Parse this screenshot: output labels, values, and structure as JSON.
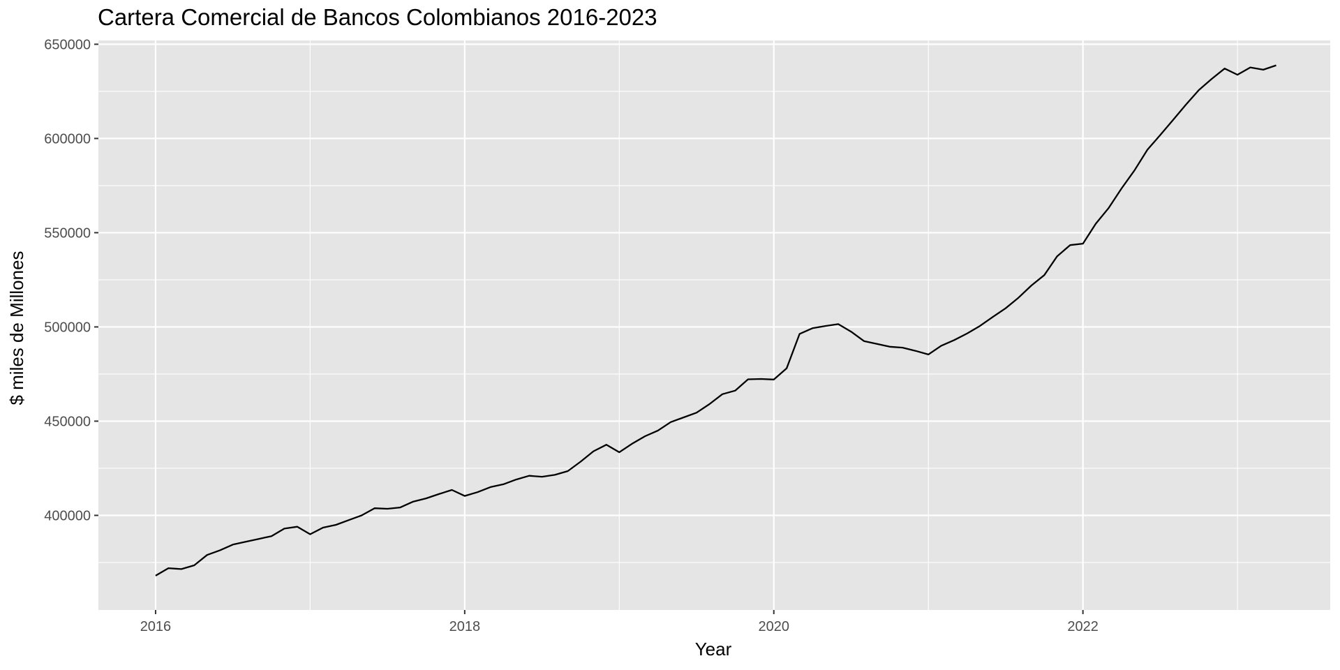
{
  "chart_data": {
    "type": "line",
    "title": "Cartera Comercial de Bancos Colombianos 2016-2023",
    "xlabel": "Year",
    "ylabel": "$ miles de Millones",
    "xlim": [
      2015.63,
      2023.6
    ],
    "ylim": [
      349800,
      652000
    ],
    "x_ticks": [
      2016,
      2018,
      2020,
      2022
    ],
    "x_tick_labels": [
      "2016",
      "2018",
      "2020",
      "2022"
    ],
    "y_ticks": [
      400000,
      450000,
      500000,
      550000,
      600000,
      650000
    ],
    "y_tick_labels": [
      "400000",
      "450000",
      "500000",
      "550000",
      "600000",
      "650000"
    ],
    "grid": true,
    "background": "#e5e5e5",
    "grid_color": "#ffffff",
    "line_color": "#000000",
    "series": [
      {
        "x": [
          2016.0,
          2016.083,
          2016.167,
          2016.25,
          2016.333,
          2016.417,
          2016.5,
          2016.583,
          2016.667,
          2016.75,
          2016.833,
          2016.917,
          2017.0,
          2017.083,
          2017.167,
          2017.25,
          2017.333,
          2017.417,
          2017.5,
          2017.583,
          2017.667,
          2017.75,
          2017.833,
          2017.917,
          2018.0,
          2018.083,
          2018.167,
          2018.25,
          2018.333,
          2018.417,
          2018.5,
          2018.583,
          2018.667,
          2018.75,
          2018.833,
          2018.917,
          2019.0,
          2019.083,
          2019.167,
          2019.25,
          2019.333,
          2019.417,
          2019.5,
          2019.583,
          2019.667,
          2019.75,
          2019.833,
          2019.917,
          2020.0,
          2020.083,
          2020.167,
          2020.25,
          2020.333,
          2020.417,
          2020.5,
          2020.583,
          2020.667,
          2020.75,
          2020.833,
          2020.917,
          2021.0,
          2021.083,
          2021.167,
          2021.25,
          2021.333,
          2021.417,
          2021.5,
          2021.583,
          2021.667,
          2021.75,
          2021.833,
          2021.917,
          2022.0,
          2022.083,
          2022.167,
          2022.25,
          2022.333,
          2022.417,
          2022.5,
          2022.583,
          2022.667,
          2022.75,
          2022.833,
          2022.917,
          2023.0,
          2023.083,
          2023.167,
          2023.25
        ],
        "values": [
          368000,
          372000,
          371500,
          373500,
          379000,
          381500,
          384500,
          386000,
          387500,
          389000,
          393000,
          394000,
          390000,
          393500,
          395000,
          397500,
          400000,
          403800,
          403500,
          404200,
          407300,
          409000,
          411300,
          413500,
          410300,
          412300,
          415000,
          416500,
          419000,
          421000,
          420500,
          421500,
          423500,
          428500,
          434000,
          437500,
          433500,
          438000,
          442000,
          445000,
          449500,
          452000,
          454500,
          459000,
          464300,
          466200,
          472200,
          472400,
          472100,
          478000,
          496300,
          499300,
          500500,
          501500,
          497500,
          492500,
          491000,
          489500,
          489000,
          487300,
          485400,
          490000,
          493000,
          496500,
          500500,
          505300,
          509900,
          515500,
          522000,
          527500,
          537500,
          543400,
          544200,
          554800,
          563200,
          573500,
          583000,
          594000,
          601800,
          609800,
          618000,
          625700,
          631600,
          637100,
          633800,
          637700,
          636500,
          638800
        ]
      }
    ]
  }
}
